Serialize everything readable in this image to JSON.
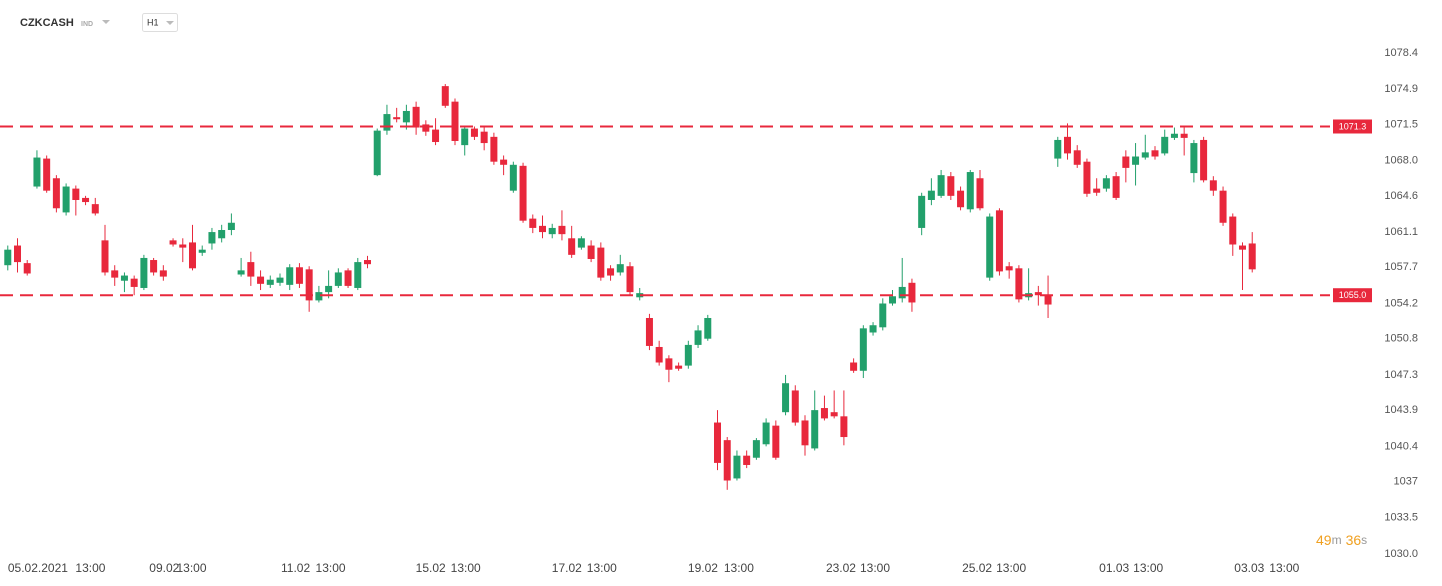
{
  "header": {
    "symbol": "CZKCASH",
    "market": "IND",
    "interval": "H1"
  },
  "chart_data": {
    "type": "candlestick",
    "up_color": "#22a06b",
    "down_color": "#e8283c",
    "open": [
      1057.9,
      1059.8,
      1058.1,
      1065.5,
      1068.2,
      1066.3,
      1063.0,
      1065.3,
      1064.4,
      1063.8,
      1060.3,
      1057.4,
      1056.4,
      1056.6,
      1055.7,
      1058.4,
      1057.4,
      1060.3,
      1059.9,
      1060.1,
      1059.1,
      1060.0,
      1060.5,
      1061.3,
      1057.0,
      1058.2,
      1056.8,
      1056.0,
      1056.2,
      1056.0,
      1057.7,
      1057.5,
      1054.5,
      1055.3,
      1055.9,
      1057.4,
      1055.7,
      1058.4,
      1066.6,
      1070.9,
      1072.2,
      1071.7,
      1073.2,
      1071.5,
      1071.0,
      1075.2,
      1073.7,
      1069.5,
      1071.1,
      1070.8,
      1070.3,
      1068.1,
      1065.1,
      1067.5,
      1062.4,
      1061.7,
      1060.9,
      1061.7,
      1060.5,
      1059.6,
      1059.8,
      1059.6,
      1057.6,
      1057.2,
      1057.8,
      1054.8,
      1052.8,
      1050.0,
      1048.9,
      1048.2,
      1048.2,
      1050.2,
      1050.8,
      1042.7,
      1041.0,
      1037.3,
      1039.5,
      1039.3,
      1040.6,
      1042.4,
      1043.7,
      1045.8,
      1042.9,
      1040.2,
      1044.1,
      1043.7,
      1043.3,
      1048.5,
      1047.7,
      1051.4,
      1051.9,
      1054.2,
      1054.7,
      1056.2,
      1061.5,
      1064.2,
      1064.6,
      1066.5,
      1065.1,
      1063.3,
      1066.3,
      1056.7,
      1063.2,
      1057.8,
      1057.6,
      1054.8,
      1055.3,
      1055.0,
      1068.2,
      1070.3,
      1069.0,
      1067.9,
      1065.3,
      1065.3,
      1066.5,
      1068.4,
      1067.6,
      1068.3,
      1069.0,
      1068.7,
      1070.2,
      1070.6,
      1066.8,
      1070.0,
      1066.1,
      1065.1,
      1062.6,
      1059.8,
      1060.0
    ],
    "high": [
      1059.8,
      1060.5,
      1058.4,
      1069.0,
      1068.5,
      1066.6,
      1065.8,
      1065.6,
      1064.6,
      1064.4,
      1061.8,
      1057.9,
      1057.2,
      1056.9,
      1058.9,
      1058.6,
      1057.9,
      1060.5,
      1060.5,
      1061.8,
      1059.8,
      1061.5,
      1061.8,
      1062.9,
      1058.6,
      1059.2,
      1057.4,
      1056.9,
      1057.1,
      1058.0,
      1058.1,
      1057.8,
      1055.9,
      1057.4,
      1057.6,
      1057.6,
      1058.6,
      1058.8,
      1071.1,
      1073.4,
      1073.1,
      1073.4,
      1073.7,
      1071.9,
      1072.1,
      1075.4,
      1074.0,
      1071.3,
      1071.3,
      1071.3,
      1070.7,
      1068.5,
      1067.9,
      1067.8,
      1062.8,
      1062.7,
      1061.9,
      1063.2,
      1061.7,
      1060.7,
      1060.3,
      1060.1,
      1057.9,
      1058.9,
      1058.2,
      1055.7,
      1053.2,
      1050.6,
      1049.2,
      1048.5,
      1050.6,
      1052.1,
      1053.1,
      1043.9,
      1041.3,
      1040.0,
      1040.0,
      1041.2,
      1043.1,
      1042.9,
      1047.3,
      1046.3,
      1043.4,
      1045.8,
      1045.3,
      1045.8,
      1045.8,
      1048.9,
      1052.1,
      1052.4,
      1054.7,
      1055.5,
      1058.6,
      1056.6,
      1064.9,
      1066.3,
      1067.1,
      1066.9,
      1065.5,
      1067.1,
      1067.1,
      1062.9,
      1063.4,
      1058.2,
      1057.9,
      1057.6,
      1055.9,
      1056.9,
      1070.3,
      1071.6,
      1069.5,
      1068.2,
      1066.3,
      1066.6,
      1066.9,
      1069.0,
      1069.7,
      1070.5,
      1069.4,
      1071.0,
      1071.2,
      1071.2,
      1070.0,
      1070.3,
      1066.5,
      1065.5,
      1062.9,
      1060.1,
      1061.1
    ],
    "low": [
      1057.4,
      1057.2,
      1056.9,
      1065.3,
      1064.9,
      1063.0,
      1062.7,
      1062.7,
      1063.7,
      1062.7,
      1056.9,
      1055.9,
      1055.3,
      1055.0,
      1055.5,
      1056.9,
      1056.4,
      1059.7,
      1058.2,
      1057.4,
      1058.8,
      1059.4,
      1060.1,
      1060.8,
      1056.8,
      1055.9,
      1055.5,
      1055.7,
      1055.9,
      1055.5,
      1055.7,
      1053.4,
      1054.3,
      1054.7,
      1055.7,
      1055.7,
      1055.5,
      1057.6,
      1066.5,
      1070.5,
      1071.7,
      1071.0,
      1070.5,
      1070.4,
      1069.5,
      1073.1,
      1069.5,
      1068.5,
      1070.0,
      1069.0,
      1067.6,
      1066.6,
      1064.9,
      1062.0,
      1061.0,
      1060.5,
      1060.5,
      1060.3,
      1058.6,
      1059.4,
      1058.2,
      1056.4,
      1056.4,
      1056.9,
      1055.0,
      1054.5,
      1049.7,
      1048.2,
      1046.6,
      1047.7,
      1047.9,
      1049.9,
      1050.6,
      1038.1,
      1036.2,
      1037.1,
      1038.3,
      1039.1,
      1040.4,
      1039.1,
      1043.4,
      1042.4,
      1039.5,
      1040.0,
      1042.9,
      1043.1,
      1040.5,
      1047.5,
      1047.0,
      1051.1,
      1051.6,
      1054.0,
      1054.3,
      1053.4,
      1060.8,
      1063.7,
      1064.4,
      1064.2,
      1063.2,
      1063.0,
      1063.2,
      1056.4,
      1056.9,
      1056.6,
      1054.3,
      1054.5,
      1054.0,
      1052.8,
      1067.4,
      1068.1,
      1067.3,
      1064.5,
      1064.6,
      1065.0,
      1064.2,
      1065.9,
      1065.6,
      1068.1,
      1068.1,
      1068.5,
      1070.0,
      1068.5,
      1065.9,
      1065.9,
      1064.6,
      1061.7,
      1058.8,
      1055.5,
      1057.2
    ],
    "close": [
      1059.4,
      1058.2,
      1057.1,
      1068.3,
      1065.1,
      1063.4,
      1065.5,
      1064.2,
      1064.0,
      1062.9,
      1057.2,
      1056.7,
      1056.9,
      1055.8,
      1058.6,
      1057.2,
      1056.8,
      1059.9,
      1059.6,
      1057.6,
      1059.4,
      1061.1,
      1061.3,
      1062.0,
      1057.4,
      1056.8,
      1056.1,
      1056.5,
      1056.7,
      1057.7,
      1056.1,
      1054.5,
      1055.3,
      1055.9,
      1057.2,
      1055.9,
      1058.2,
      1058.0,
      1070.9,
      1072.5,
      1072.0,
      1072.8,
      1071.2,
      1070.8,
      1069.8,
      1073.3,
      1069.9,
      1071.1,
      1070.3,
      1069.7,
      1067.9,
      1067.6,
      1067.6,
      1062.2,
      1061.5,
      1061.1,
      1061.5,
      1060.9,
      1058.9,
      1060.5,
      1058.5,
      1056.7,
      1056.9,
      1058.0,
      1055.3,
      1055.2,
      1050.1,
      1048.5,
      1047.8,
      1047.9,
      1050.2,
      1051.6,
      1052.8,
      1038.8,
      1037.1,
      1039.5,
      1038.6,
      1041.0,
      1042.7,
      1039.3,
      1046.5,
      1042.7,
      1040.5,
      1043.9,
      1043.1,
      1043.3,
      1041.3,
      1047.7,
      1051.8,
      1052.1,
      1054.2,
      1054.9,
      1055.8,
      1054.3,
      1064.6,
      1065.1,
      1066.6,
      1064.6,
      1063.5,
      1066.9,
      1063.4,
      1062.6,
      1057.3,
      1057.4,
      1054.6,
      1055.2,
      1055.0,
      1054.1,
      1070.0,
      1068.7,
      1067.6,
      1064.8,
      1064.9,
      1066.3,
      1064.4,
      1067.3,
      1068.4,
      1068.8,
      1068.4,
      1070.3,
      1070.6,
      1070.2,
      1069.7,
      1066.1,
      1065.1,
      1062.0,
      1059.9,
      1059.4,
      1057.5
    ],
    "xlim": [
      -0.8,
      136
    ],
    "xticks": [
      {
        "value": 3.1,
        "label": "05.02.2021"
      },
      {
        "value": 8.5,
        "label": "13:00"
      },
      {
        "value": 16.1,
        "label": "09.02"
      },
      {
        "value": 18.9,
        "label": "13:00"
      },
      {
        "value": 29.6,
        "label": "11.02"
      },
      {
        "value": 33.2,
        "label": "13:00"
      },
      {
        "value": 43.5,
        "label": "15.02"
      },
      {
        "value": 47.1,
        "label": "13:00"
      },
      {
        "value": 57.5,
        "label": "17.02"
      },
      {
        "value": 61.1,
        "label": "13:00"
      },
      {
        "value": 71.5,
        "label": "19.02"
      },
      {
        "value": 75.2,
        "label": "13:00"
      },
      {
        "value": 85.7,
        "label": "23.02"
      },
      {
        "value": 89.2,
        "label": "13:00"
      },
      {
        "value": 99.7,
        "label": "25.02"
      },
      {
        "value": 103.2,
        "label": "13:00"
      },
      {
        "value": 113.8,
        "label": "01.03"
      },
      {
        "value": 117.3,
        "label": "13:00"
      },
      {
        "value": 127.7,
        "label": "03.03"
      },
      {
        "value": 131.3,
        "label": "13:00"
      }
    ],
    "ylim": [
      1030,
      1078.4
    ],
    "yticks": [
      {
        "value": 1030,
        "label": "1030.0"
      },
      1033.5,
      1037,
      1040.4,
      1043.9,
      1047.3,
      1050.8,
      1054.2,
      1057.7,
      1061.1,
      1064.6,
      {
        "value": 1068,
        "label": "1068.0"
      },
      1071.5,
      1074.9,
      1078.4
    ],
    "levels": [
      1071.3,
      {
        "value": 1055,
        "label": "1055.0"
      }
    ],
    "level_color": "#e8283c",
    "timer": {
      "minutes": 49,
      "minutes_unit": "m",
      "seconds": 36,
      "seconds_unit": "s"
    }
  }
}
